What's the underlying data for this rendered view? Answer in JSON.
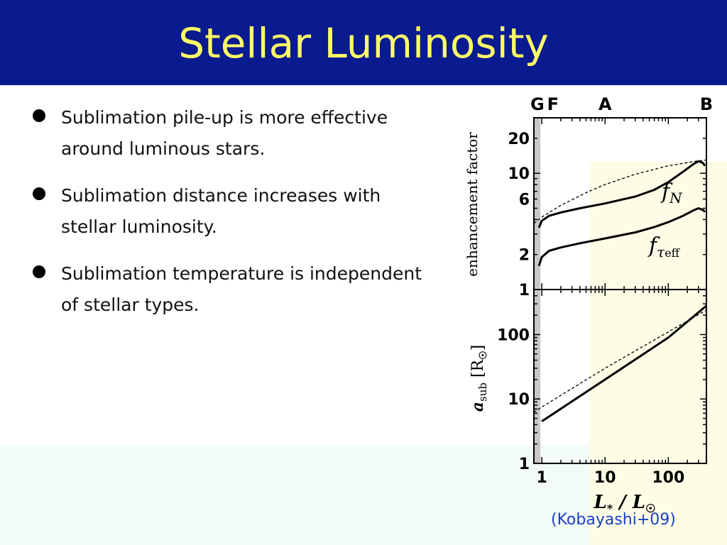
{
  "slide": {
    "title": "Stellar Luminosity",
    "bullets": [
      "Sublimation pile-up is more effective around luminous stars.",
      "Sublimation distance increases with stellar luminosity.",
      "Sublimation temperature is independent of stellar types."
    ],
    "citation": "(Kobayashi+09)"
  },
  "colors": {
    "header_bg": "#0a1a8f",
    "title": "#ffff66",
    "citation": "#1a3fc4",
    "shade": "#c8c8c8"
  },
  "chart_data": [
    {
      "type": "line",
      "xscale": "log",
      "xlim": [
        0.75,
        400
      ],
      "ylim": [
        1,
        30
      ],
      "yscale": "log",
      "ylabel": "enhancement factor",
      "xticklabels": [
        "1",
        "10",
        "100"
      ],
      "yticks": [
        1,
        2,
        6,
        10,
        20
      ],
      "yticklabels": [
        "1",
        "2",
        "6",
        "10",
        "20"
      ],
      "spectral_types": [
        {
          "label": "G",
          "x": 0.85
        },
        {
          "label": "F",
          "x": 1.5
        },
        {
          "label": "A",
          "x": 10
        },
        {
          "label": "B",
          "x": 400
        }
      ],
      "shaded_x": [
        0.7,
        0.95
      ],
      "series": [
        {
          "name": "f_N",
          "label_main": "f",
          "label_sub": "N",
          "style": "solid",
          "x": [
            0.9,
            1.0,
            1.3,
            2,
            4,
            10,
            30,
            60,
            100,
            170,
            250,
            300,
            350,
            380
          ],
          "y": [
            3.4,
            3.9,
            4.3,
            4.6,
            5.0,
            5.5,
            6.3,
            7.2,
            8.4,
            10.3,
            12.0,
            12.7,
            12.3,
            11.6
          ]
        },
        {
          "name": "f_tau_eff",
          "label_main": "f",
          "label_sub": "τ",
          "label_subsub": "eff",
          "style": "solid",
          "x": [
            0.9,
            1.0,
            1.3,
            2,
            4,
            10,
            30,
            60,
            100,
            170,
            250,
            300,
            350,
            380
          ],
          "y": [
            1.6,
            1.9,
            2.15,
            2.3,
            2.5,
            2.75,
            3.1,
            3.45,
            3.8,
            4.3,
            4.8,
            5.0,
            4.85,
            4.65
          ]
        },
        {
          "name": "dashed",
          "style": "dashed",
          "x": [
            0.75,
            1,
            2,
            5,
            10,
            30,
            100,
            300,
            400
          ],
          "y": [
            3.7,
            4.2,
            5.3,
            6.8,
            8.0,
            9.8,
            11.6,
            12.8,
            13.0
          ]
        }
      ]
    },
    {
      "type": "line",
      "xscale": "log",
      "yscale": "log",
      "xlim": [
        0.75,
        400
      ],
      "ylim": [
        1,
        500
      ],
      "ylabel_main": "a",
      "ylabel_sub": "sub",
      "ylabel_unit": "[R",
      "ylabel_sun": "☉",
      "ylabel_close": "]",
      "xlabel_main": "L",
      "xlabel_sub": "*",
      "xlabel_slash": " / L",
      "xlabel_sun": "☉",
      "xticklabels": [
        "1",
        "10",
        "100"
      ],
      "yticks": [
        1,
        10,
        100
      ],
      "yticklabels": [
        "1",
        "10",
        "100"
      ],
      "shaded_x": [
        0.7,
        0.95
      ],
      "series": [
        {
          "name": "a_sub",
          "style": "solid",
          "x": [
            1,
            10,
            100,
            400
          ],
          "y": [
            4.5,
            20,
            90,
            280
          ]
        },
        {
          "name": "dashed",
          "style": "dashed",
          "x": [
            0.75,
            1,
            10,
            100,
            400
          ],
          "y": [
            6.2,
            7.5,
            30,
            110,
            240
          ]
        }
      ]
    }
  ]
}
